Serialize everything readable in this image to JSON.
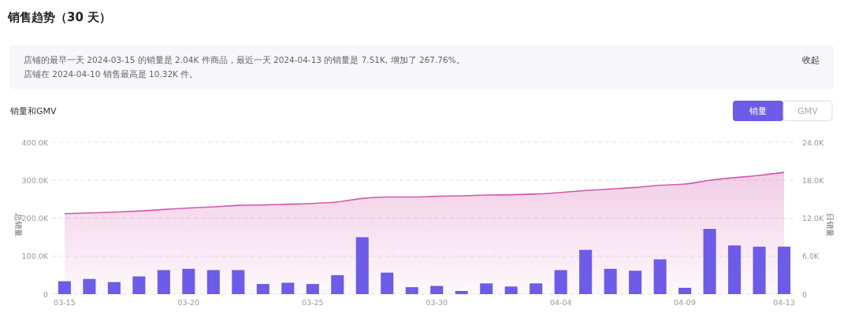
{
  "chart_data": {
    "type": "bar",
    "title": "销售趋势（30 天）",
    "subtitle": "销量和GMV",
    "ylabel": "总销量",
    "y2label": "日销量",
    "annotations": [
      "店铺的最早一天 2024-03-15 的销量是 2.04K 件商品，最近一天 2024-04-13 的销量是 7.51K, 增加了 267.76%。",
      "店铺在 2024-04-10 销售最高是 10.32K 件。",
      "收起",
      "销量",
      "GMV"
    ],
    "categories": [
      "03-15",
      null,
      null,
      null,
      null,
      "03-20",
      null,
      null,
      null,
      null,
      "03-25",
      null,
      null,
      null,
      null,
      "03-30",
      null,
      null,
      null,
      null,
      "04-04",
      null,
      null,
      null,
      null,
      "04-09",
      null,
      null,
      null,
      "04-13"
    ],
    "series": [
      {
        "type": "area",
        "color": "#d25aab",
        "values": [
          212000,
          214000,
          216000,
          219000,
          223000,
          227000,
          230000,
          234000,
          235000,
          237000,
          239000,
          243000,
          252000,
          256000,
          256000,
          258000,
          259000,
          261000,
          262000,
          264000,
          268000,
          273000,
          277000,
          281000,
          287000,
          290000,
          300000,
          307000,
          313000,
          321000
        ]
      },
      {
        "axis": "y2",
        "color": "#6c5ce7",
        "values": [
          2040,
          2400,
          1900,
          2800,
          3800,
          4000,
          3800,
          3800,
          1600,
          1800,
          1600,
          3000,
          9000,
          3400,
          1100,
          1300,
          500,
          1700,
          1200,
          1700,
          3800,
          7000,
          4000,
          3700,
          5500,
          1000,
          10320,
          7700,
          7500,
          7510
        ]
      }
    ],
    "ylim": [
      0,
      400000
    ],
    "yticks": [
      0,
      {
        "value": 100000,
        "label": "100.0K"
      },
      {
        "value": 200000,
        "label": "200.0K"
      },
      {
        "value": 300000,
        "label": "300.0K"
      },
      {
        "value": 400000,
        "label": "400.0K"
      }
    ],
    "y2lim": [
      0,
      24000
    ],
    "y2ticks": [
      0,
      {
        "value": 6000,
        "label": "6.0K"
      },
      {
        "value": 12000,
        "label": "12.0K"
      },
      {
        "value": 18000,
        "label": "18.0K"
      },
      {
        "value": 24000,
        "label": "24.0K"
      }
    ],
    "grid": true
  }
}
